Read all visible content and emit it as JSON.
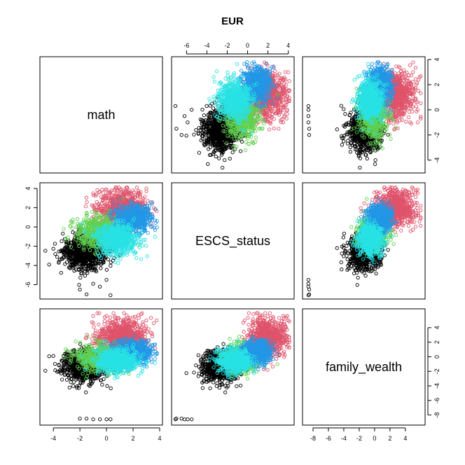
{
  "chart_data": {
    "type": "scatter",
    "title": "EUR",
    "variables": [
      "math",
      "ESCS_status",
      "family_wealth"
    ],
    "ranges": {
      "math": [
        -4.8,
        4.0
      ],
      "ESCS_status": [
        -7.2,
        4.3
      ],
      "family_wealth": [
        -9.0,
        6.2
      ]
    },
    "ticks": {
      "math": [
        -4,
        -2,
        0,
        2,
        4
      ],
      "ESCS_status": [
        -6,
        -4,
        -2,
        0,
        2,
        4
      ],
      "family_wealth": [
        -8,
        -6,
        -4,
        -2,
        0,
        2,
        4
      ]
    },
    "clusters": [
      {
        "color": "#000000",
        "count": 900,
        "mean": [
          -1.6,
          -2.6,
          -1.4
        ],
        "sd": [
          0.8,
          0.85,
          1.0
        ]
      },
      {
        "color": "#DF536B",
        "count": 800,
        "mean": [
          1.2,
          1.9,
          2.6
        ],
        "sd": [
          0.9,
          0.9,
          1.3
        ]
      },
      {
        "color": "#61D04F",
        "count": 600,
        "mean": [
          -0.5,
          -0.5,
          -0.2
        ],
        "sd": [
          0.9,
          0.8,
          0.9
        ]
      },
      {
        "color": "#2297E6",
        "count": 600,
        "mean": [
          2.0,
          0.9,
          0.6
        ],
        "sd": [
          0.7,
          0.7,
          0.8
        ]
      },
      {
        "color": "#28E2E5",
        "count": 600,
        "mean": [
          0.8,
          -1.3,
          -0.6
        ],
        "sd": [
          0.8,
          0.8,
          0.8
        ]
      }
    ],
    "outliers": [
      {
        "color": "#000000",
        "points": [
          [
            -2.0,
            -6.5,
            -8.5
          ],
          [
            -1.5,
            -7.0,
            -8.5
          ],
          [
            -1.0,
            -5.9,
            -8.6
          ],
          [
            -0.5,
            -6.2,
            -8.6
          ],
          [
            0.0,
            -5.5,
            -8.6
          ],
          [
            0.3,
            -7.1,
            -8.6
          ]
        ]
      },
      {
        "color": "#DF536B",
        "points": [
          [
            2.0,
            3.8,
            5.4
          ],
          [
            1.5,
            3.6,
            4.8
          ],
          [
            0.0,
            3.9,
            5.6
          ],
          [
            -1.0,
            3.5,
            5.6
          ],
          [
            3.0,
            4.0,
            5.0
          ]
        ]
      }
    ],
    "grid": false,
    "layout": "scatterplot-matrix 3x3"
  }
}
